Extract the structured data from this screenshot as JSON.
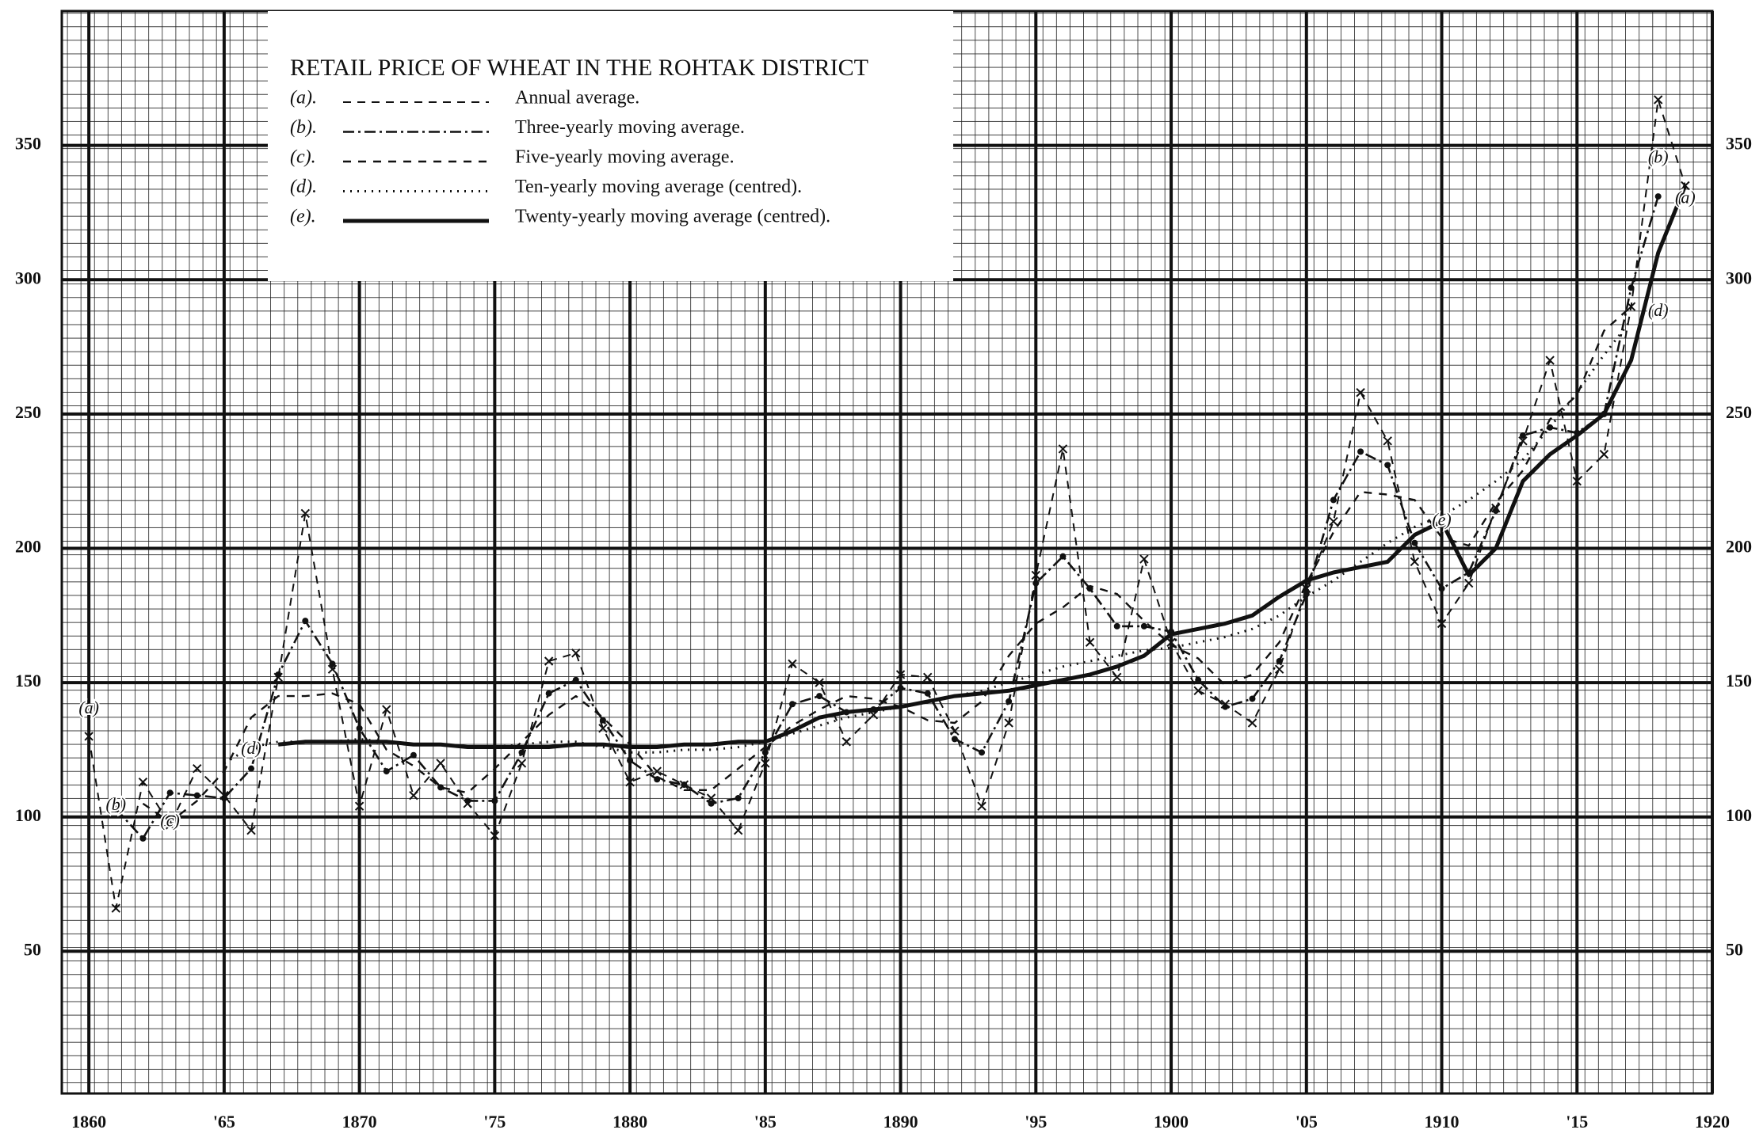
{
  "chart_data": {
    "type": "line",
    "title": "RETAIL PRICE OF WHEAT IN THE ROHTAK DISTRICT",
    "x": [
      1860,
      1861,
      1862,
      1863,
      1864,
      1865,
      1866,
      1867,
      1868,
      1869,
      1870,
      1871,
      1872,
      1873,
      1874,
      1875,
      1876,
      1877,
      1878,
      1879,
      1880,
      1881,
      1882,
      1883,
      1884,
      1885,
      1886,
      1887,
      1888,
      1889,
      1890,
      1891,
      1892,
      1893,
      1894,
      1895,
      1896,
      1897,
      1898,
      1899,
      1900,
      1901,
      1902,
      1903,
      1904,
      1905,
      1906,
      1907,
      1908,
      1909,
      1910,
      1911,
      1912,
      1913,
      1914,
      1915,
      1916,
      1917,
      1918,
      1919
    ],
    "series": [
      {
        "key": "(a).",
        "name": "Annual average.",
        "style": "x-marked",
        "color": "#111",
        "values": [
          130,
          66,
          113,
          97,
          118,
          108,
          95,
          152,
          213,
          155,
          104,
          140,
          108,
          120,
          105,
          93,
          120,
          158,
          161,
          133,
          113,
          117,
          112,
          107,
          95,
          120,
          157,
          150,
          128,
          138,
          153,
          152,
          132,
          104,
          135,
          190,
          237,
          165,
          152,
          196,
          165,
          147,
          142,
          135,
          155,
          185,
          210,
          258,
          240,
          195,
          172,
          187,
          215,
          240,
          270,
          225,
          235,
          290,
          367,
          335
        ]
      },
      {
        "key": "(b).",
        "name": "Three-yearly moving average.",
        "style": "dot-dash",
        "color": "#111",
        "values": [
          null,
          103,
          92,
          109,
          108,
          107,
          118,
          153,
          173,
          157,
          133,
          117,
          123,
          111,
          106,
          106,
          124,
          146,
          151,
          136,
          121,
          114,
          112,
          105,
          107,
          124,
          142,
          145,
          139,
          140,
          148,
          146,
          129,
          124,
          143,
          187,
          197,
          185,
          171,
          171,
          169,
          151,
          141,
          144,
          158,
          183,
          218,
          236,
          231,
          202,
          185,
          191,
          214,
          242,
          245,
          243,
          250,
          297,
          331,
          null
        ]
      },
      {
        "key": "(c).",
        "name": "Five-yearly moving average.",
        "style": "dashed",
        "color": "#111",
        "values": [
          null,
          null,
          105,
          98,
          106,
          117,
          137,
          145,
          145,
          146,
          142,
          125,
          119,
          111,
          109,
          118,
          128,
          138,
          145,
          137,
          127,
          115,
          110,
          110,
          118,
          126,
          134,
          140,
          145,
          144,
          141,
          136,
          135,
          143,
          160,
          172,
          178,
          186,
          183,
          173,
          164,
          159,
          149,
          153,
          165,
          187,
          206,
          221,
          220,
          218,
          204,
          201,
          217,
          229,
          248,
          257,
          281,
          290,
          null,
          null
        ]
      },
      {
        "key": "(d).",
        "name": "Ten-yearly moving average (centred).",
        "style": "dotted",
        "color": "#111",
        "values": [
          null,
          null,
          null,
          null,
          null,
          120,
          126,
          128,
          128,
          128,
          129,
          128,
          127,
          127,
          126,
          126,
          127,
          128,
          128,
          126,
          124,
          124,
          125,
          125,
          126,
          128,
          131,
          134,
          137,
          139,
          141,
          143,
          145,
          147,
          150,
          153,
          156,
          158,
          160,
          162,
          163,
          165,
          167,
          170,
          175,
          182,
          188,
          195,
          202,
          208,
          212,
          218,
          225,
          233,
          245,
          258,
          272,
          285,
          null,
          null
        ]
      },
      {
        "key": "(e).",
        "name": "Twenty-yearly moving average (centred).",
        "style": "solid-thick",
        "color": "#111",
        "values": [
          null,
          null,
          null,
          null,
          null,
          null,
          null,
          127,
          128,
          128,
          128,
          128,
          127,
          127,
          126,
          126,
          126,
          126,
          127,
          127,
          126,
          126,
          127,
          127,
          128,
          128,
          132,
          137,
          139,
          140,
          141,
          143,
          145,
          146,
          147,
          149,
          151,
          153,
          156,
          160,
          168,
          170,
          172,
          175,
          182,
          188,
          191,
          193,
          195,
          205,
          210,
          190,
          200,
          225,
          235,
          242,
          250,
          270,
          310,
          335
        ]
      }
    ],
    "annotations": [
      {
        "text": "(a)",
        "x": 1860,
        "y": 140
      },
      {
        "text": "(b)",
        "x": 1861,
        "y": 104
      },
      {
        "text": "(c)",
        "x": 1863,
        "y": 98
      },
      {
        "text": "(d)",
        "x": 1866,
        "y": 125
      },
      {
        "text": "(e)",
        "x": 1910,
        "y": 210
      },
      {
        "text": "(b)",
        "x": 1918,
        "y": 345
      },
      {
        "text": "(a)",
        "x": 1919,
        "y": 330
      },
      {
        "text": "(d)",
        "x": 1918,
        "y": 288
      }
    ],
    "xlim": [
      1859,
      1920
    ],
    "xticks": [
      1860,
      {
        "value": 1865,
        "label": "'65"
      },
      1870,
      {
        "value": 1875,
        "label": "'75"
      },
      1880,
      {
        "value": 1885,
        "label": "'85"
      },
      1890,
      {
        "value": 1895,
        "label": "'95"
      },
      1900,
      {
        "value": 1905,
        "label": "'05"
      },
      1910,
      {
        "value": 1915,
        "label": "'15"
      },
      1920
    ],
    "ylim": [
      0,
      400
    ],
    "yticks": [
      50,
      100,
      150,
      200,
      250,
      300,
      350
    ],
    "grid": true
  }
}
